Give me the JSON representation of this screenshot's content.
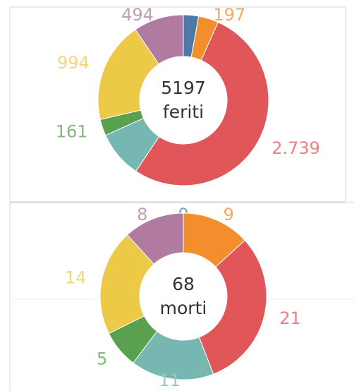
{
  "chart_data": [
    {
      "type": "donut",
      "total": 5197,
      "center_text": "feriti",
      "categories": [
        null,
        null,
        null,
        null,
        null,
        null,
        null
      ],
      "values": [
        150,
        197,
        2739,
        462,
        161,
        994,
        494
      ],
      "value_labels": [
        null,
        "197",
        "2.739",
        null,
        "161",
        "994",
        "494"
      ],
      "colors": [
        "#4e79a7",
        "#f28e2b",
        "#e15759",
        "#76b7b2",
        "#59a14f",
        "#edc948",
        "#b07aa1"
      ]
    },
    {
      "type": "donut",
      "total": 68,
      "center_text": "morti",
      "categories": [
        null,
        null,
        null,
        null,
        null,
        null,
        null
      ],
      "values": [
        0,
        9,
        21,
        11,
        5,
        14,
        8
      ],
      "colors": [
        "#4e79a7",
        "#f28e2b",
        "#e15759",
        "#76b7b2",
        "#59a14f",
        "#edc948",
        "#b07aa1"
      ]
    }
  ]
}
